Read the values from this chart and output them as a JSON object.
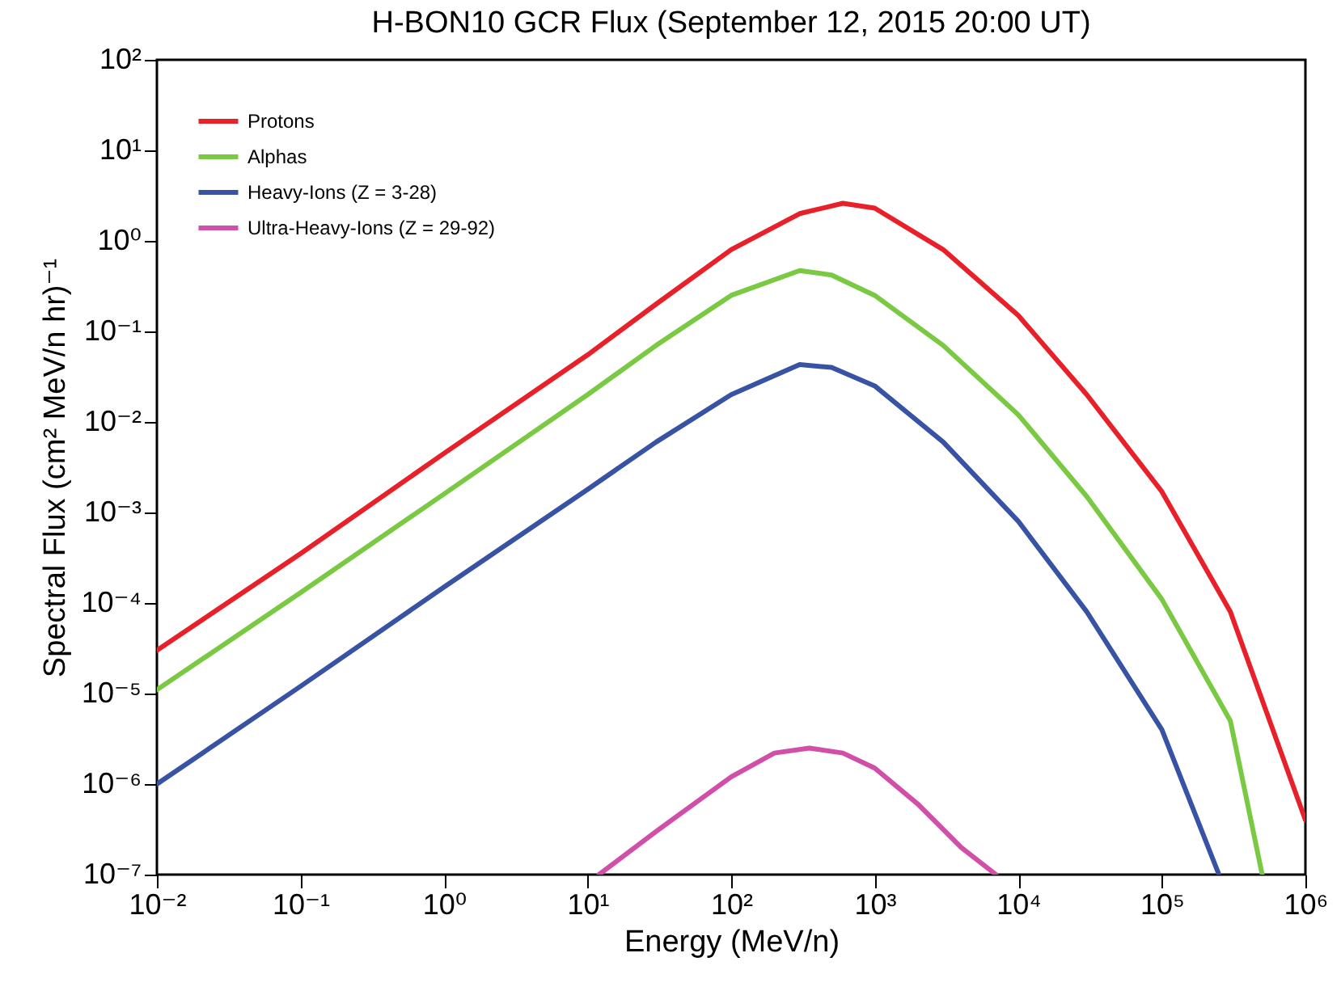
{
  "chart_data": {
    "type": "line",
    "title": "H-BON10 GCR Flux (September 12, 2015 20:00 UT)",
    "xlabel": "Energy (MeV/n)",
    "ylabel": "Spectral Flux (cm² MeV/n hr)⁻¹",
    "log": "xy",
    "grid": false,
    "legend": "top left",
    "marker": "none",
    "line_style": "solid",
    "xlim": [
      0.01,
      1000000
    ],
    "ylim": [
      1e-07,
      100
    ],
    "xticks": [
      {
        "value": 0.01,
        "label": "10⁻²"
      },
      {
        "value": 0.1,
        "label": "10⁻¹"
      },
      {
        "value": 1,
        "label": "10⁰"
      },
      {
        "value": 10,
        "label": "10¹"
      },
      {
        "value": 100,
        "label": "10²"
      },
      {
        "value": 1000,
        "label": "10³"
      },
      {
        "value": 10000,
        "label": "10⁴"
      },
      {
        "value": 100000,
        "label": "10⁵"
      },
      {
        "value": 1000000,
        "label": "10⁶"
      }
    ],
    "yticks": [
      {
        "value": 1e-07,
        "label": "10⁻⁷"
      },
      {
        "value": 1e-06,
        "label": "10⁻⁶"
      },
      {
        "value": 1e-05,
        "label": "10⁻⁵"
      },
      {
        "value": 0.0001,
        "label": "10⁻⁴"
      },
      {
        "value": 0.001,
        "label": "10⁻³"
      },
      {
        "value": 0.01,
        "label": "10⁻²"
      },
      {
        "value": 0.1,
        "label": "10⁻¹"
      },
      {
        "value": 1,
        "label": "10⁰"
      },
      {
        "value": 10,
        "label": "10¹"
      },
      {
        "value": 100,
        "label": "10²"
      }
    ],
    "series": [
      {
        "name": "Protons",
        "color": "#e8202a",
        "x": [
          0.01,
          0.1,
          1,
          10,
          30,
          100,
          300,
          600,
          1000,
          3000,
          10000,
          30000,
          100000,
          300000,
          1000000
        ],
        "values": [
          3e-05,
          0.00035,
          0.0045,
          0.055,
          0.2,
          0.8,
          2.0,
          2.6,
          2.3,
          0.8,
          0.15,
          0.02,
          0.0017,
          8e-05,
          4e-07
        ]
      },
      {
        "name": "Alphas",
        "color": "#7ac943",
        "x": [
          0.01,
          0.1,
          1,
          10,
          30,
          100,
          300,
          500,
          1000,
          3000,
          10000,
          30000,
          100000,
          300000,
          500000
        ],
        "values": [
          1.1e-05,
          0.00013,
          0.0016,
          0.02,
          0.07,
          0.25,
          0.47,
          0.42,
          0.25,
          0.07,
          0.012,
          0.0015,
          0.00011,
          5e-06,
          1e-07
        ]
      },
      {
        "name": "Heavy-Ions (Z = 3-28)",
        "color": "#3953a4",
        "x": [
          0.01,
          0.1,
          1,
          10,
          30,
          100,
          300,
          500,
          1000,
          3000,
          10000,
          30000,
          100000,
          250000
        ],
        "values": [
          1e-06,
          1.2e-05,
          0.00015,
          0.0018,
          0.006,
          0.02,
          0.043,
          0.04,
          0.025,
          0.006,
          0.0008,
          8e-05,
          4e-06,
          1e-07
        ]
      },
      {
        "name": "Ultra-Heavy-Ions (Z = 29-92)",
        "color": "#d14fa8",
        "x": [
          12,
          30,
          100,
          200,
          350,
          600,
          1000,
          2000,
          4000,
          7000
        ],
        "values": [
          1e-07,
          3e-07,
          1.2e-06,
          2.2e-06,
          2.5e-06,
          2.2e-06,
          1.5e-06,
          6e-07,
          2e-07,
          1e-07
        ]
      }
    ]
  }
}
